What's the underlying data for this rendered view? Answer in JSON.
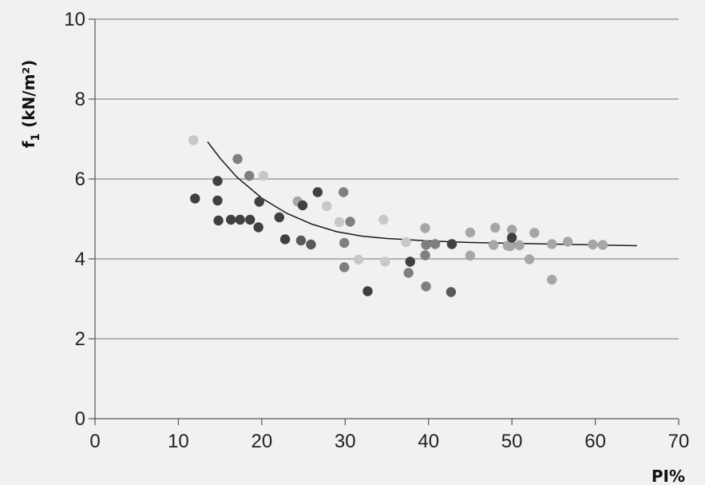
{
  "chart_data": {
    "type": "scatter",
    "title": "",
    "xlabel": "PI%",
    "ylabel": "f",
    "ylabel_sub": "1",
    "ylabel_unit": " (kN/m²)",
    "xlim": [
      0,
      70
    ],
    "ylim": [
      0,
      10
    ],
    "xticks": [
      0,
      10,
      20,
      30,
      40,
      50,
      60,
      70
    ],
    "yticks": [
      0,
      2,
      4,
      6,
      8,
      10
    ],
    "grid": "horizontal",
    "legend": "none",
    "colors": [
      "#c8c8c8",
      "#a6a6a6",
      "#7f7f7f",
      "#404040",
      "#595959"
    ],
    "series": [
      {
        "color": "#c8c8c8",
        "points": [
          [
            11.8,
            6.97
          ],
          [
            20.2,
            6.08
          ],
          [
            27.8,
            5.32
          ],
          [
            29.3,
            4.92
          ],
          [
            31.6,
            3.98
          ],
          [
            34.6,
            4.98
          ],
          [
            34.8,
            3.93
          ],
          [
            37.3,
            4.42
          ]
        ]
      },
      {
        "color": "#a6a6a6",
        "points": [
          [
            24.3,
            5.44
          ],
          [
            39.6,
            4.77
          ],
          [
            45.0,
            4.66
          ],
          [
            45.0,
            4.08
          ],
          [
            47.8,
            4.35
          ],
          [
            48.0,
            4.78
          ],
          [
            49.5,
            4.33
          ],
          [
            49.8,
            4.32
          ],
          [
            50.0,
            4.73
          ],
          [
            50.9,
            4.34
          ],
          [
            52.1,
            3.99
          ],
          [
            52.7,
            4.65
          ],
          [
            54.8,
            3.48
          ],
          [
            54.8,
            4.37
          ],
          [
            56.7,
            4.43
          ],
          [
            59.7,
            4.36
          ],
          [
            60.9,
            4.35
          ]
        ]
      },
      {
        "color": "#7f7f7f",
        "points": [
          [
            17.1,
            6.5
          ],
          [
            18.5,
            6.08
          ],
          [
            29.8,
            5.67
          ],
          [
            29.9,
            4.4
          ],
          [
            29.9,
            3.79
          ],
          [
            30.6,
            4.93
          ],
          [
            37.6,
            3.65
          ],
          [
            39.6,
            4.09
          ],
          [
            39.7,
            3.31
          ],
          [
            39.7,
            4.35
          ],
          [
            40.8,
            4.37
          ]
        ]
      },
      {
        "color": "#404040",
        "points": [
          [
            12.0,
            5.51
          ],
          [
            14.7,
            5.95
          ],
          [
            14.7,
            5.46
          ],
          [
            14.8,
            4.96
          ],
          [
            16.3,
            4.98
          ],
          [
            17.4,
            4.98
          ],
          [
            18.6,
            4.98
          ],
          [
            19.6,
            4.79
          ],
          [
            19.7,
            5.43
          ],
          [
            22.1,
            5.04
          ],
          [
            22.8,
            4.49
          ],
          [
            24.9,
            5.34
          ],
          [
            26.7,
            5.67
          ],
          [
            32.7,
            3.19
          ],
          [
            37.8,
            3.93
          ],
          [
            42.8,
            4.37
          ],
          [
            50.0,
            4.53
          ]
        ]
      },
      {
        "color": "#595959",
        "points": [
          [
            24.7,
            4.46
          ],
          [
            25.9,
            4.36
          ],
          [
            42.7,
            3.17
          ]
        ]
      }
    ],
    "trendline": {
      "color": "#1a1a1a",
      "points": [
        [
          13.5,
          6.93
        ],
        [
          15,
          6.52
        ],
        [
          17,
          6.05
        ],
        [
          20,
          5.52
        ],
        [
          23,
          5.14
        ],
        [
          26,
          4.87
        ],
        [
          29,
          4.68
        ],
        [
          32,
          4.57
        ],
        [
          35,
          4.51
        ],
        [
          40,
          4.45
        ],
        [
          45,
          4.41
        ],
        [
          50,
          4.39
        ],
        [
          55,
          4.37
        ],
        [
          60,
          4.35
        ],
        [
          65,
          4.33
        ]
      ]
    }
  }
}
